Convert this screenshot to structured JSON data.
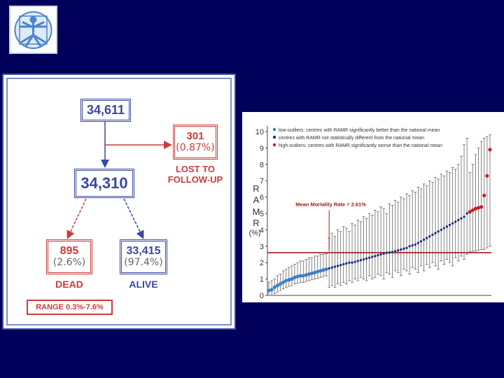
{
  "colors": {
    "background": "#00005a",
    "flow_blue": "#3a48a0",
    "flow_red": "#cc3b3b",
    "chart_low_outlier": "#3d7fc1",
    "chart_not_different": "#1f2f7a",
    "chart_high_outlier": "#c62020",
    "chart_mean_line": "#a01818"
  },
  "logo": {
    "icon": "vitruvian-man-icon"
  },
  "flowchart": {
    "total": "34,611",
    "lost": "301",
    "lost_pct": "(0.87%)",
    "lost_label": [
      "LOST TO",
      "FOLLOW-UP"
    ],
    "followed": "34,310",
    "dead": "895",
    "dead_pct": "(2.6%)",
    "dead_label": "DEAD",
    "alive": "33,415",
    "alive_pct": "(97.4%)",
    "alive_label": "ALIVE",
    "range": "RANGE 0.3%-7.6%"
  },
  "chart_data": {
    "type": "scatter",
    "ylabel_letters": [
      "R",
      "A",
      "M",
      "R"
    ],
    "ylabel_unit": "(%)",
    "yticks": [
      0,
      1,
      2,
      3,
      4,
      5,
      6,
      7,
      8,
      9,
      10
    ],
    "ylim": [
      0,
      10
    ],
    "grid": false,
    "legend_position": "top-left",
    "legend": [
      "low-outliers: centres with RAMR significantly better than the national mean",
      "centres with RAMR not statistically different from the national mean",
      "high-outliers: centres with RAMR significantly worse than the national mean"
    ],
    "mean_label": "Mean Mortality Rate = 2.61%",
    "mean_value": 2.61,
    "x": [
      1,
      2,
      3,
      4,
      5,
      6,
      7,
      8,
      9,
      10,
      11,
      12,
      13,
      14,
      15,
      16,
      17,
      18,
      19,
      20,
      21,
      22,
      23,
      24,
      25,
      26,
      27,
      28,
      29,
      30,
      31,
      32,
      33,
      34,
      35,
      36,
      37,
      38,
      39,
      40,
      41,
      42,
      43,
      44,
      45,
      46,
      47,
      48,
      49,
      50,
      51,
      52,
      53,
      54,
      55,
      56,
      57,
      58,
      59,
      60,
      61,
      62,
      63,
      64,
      65,
      66,
      67,
      68,
      69,
      70,
      71,
      72,
      73,
      74,
      75,
      76,
      77,
      78
    ],
    "series": [
      {
        "key": "low",
        "x": [
          1,
          2,
          3,
          4,
          5,
          6,
          7,
          8,
          9,
          10,
          11,
          12,
          13,
          14,
          15,
          16,
          17,
          18,
          19,
          20,
          21
        ],
        "values": [
          0.3,
          0.35,
          0.5,
          0.6,
          0.7,
          0.8,
          0.9,
          0.95,
          1.0,
          1.1,
          1.15,
          1.2,
          1.2,
          1.25,
          1.3,
          1.35,
          1.4,
          1.45,
          1.5,
          1.55,
          1.6
        ],
        "lower": [
          0,
          0,
          0.1,
          0.2,
          0.3,
          0.4,
          0.5,
          0.55,
          0.6,
          0.7,
          0.75,
          0.8,
          0.8,
          0.85,
          0.9,
          0.95,
          1.0,
          1.05,
          1.1,
          1.15,
          1.2
        ],
        "upper": [
          0.8,
          0.9,
          1.0,
          1.2,
          1.3,
          1.5,
          1.6,
          1.7,
          1.8,
          1.9,
          2.0,
          2.1,
          2.1,
          2.2,
          2.3,
          2.3,
          2.4,
          2.4,
          2.5,
          2.5,
          2.55
        ]
      },
      {
        "key": "mid",
        "x": [
          22,
          23,
          24,
          25,
          26,
          27,
          28,
          29,
          30,
          31,
          32,
          33,
          34,
          35,
          36,
          37,
          38,
          39,
          40,
          41,
          42,
          43,
          44,
          45,
          46,
          47,
          48,
          49,
          50,
          51,
          52,
          53,
          54,
          55,
          56,
          57,
          58,
          59,
          60,
          61,
          62,
          63,
          64,
          65,
          66,
          67,
          68,
          69,
          70
        ],
        "values": [
          1.65,
          1.7,
          1.75,
          1.8,
          1.85,
          1.9,
          1.95,
          2.0,
          2.0,
          2.05,
          2.1,
          2.15,
          2.2,
          2.25,
          2.3,
          2.35,
          2.4,
          2.45,
          2.5,
          2.55,
          2.6,
          2.62,
          2.65,
          2.7,
          2.75,
          2.8,
          2.85,
          2.9,
          3.0,
          3.05,
          3.1,
          3.2,
          3.3,
          3.4,
          3.5,
          3.6,
          3.7,
          3.8,
          3.9,
          4.0,
          4.1,
          4.2,
          4.3,
          4.4,
          4.5,
          4.6,
          4.7,
          4.8,
          5.0
        ],
        "lower": [
          0.5,
          0.6,
          0.5,
          0.7,
          0.6,
          0.8,
          0.7,
          0.9,
          0.8,
          1.0,
          0.9,
          1.1,
          1.0,
          0.9,
          1.2,
          1.0,
          1.1,
          1.3,
          1.2,
          1.0,
          1.4,
          1.3,
          1.1,
          1.5,
          1.4,
          1.2,
          1.6,
          1.5,
          1.3,
          1.7,
          1.6,
          1.4,
          1.8,
          1.5,
          1.9,
          1.7,
          2.0,
          1.8,
          1.6,
          2.1,
          1.9,
          2.2,
          2.0,
          1.8,
          2.3,
          2.1,
          2.4,
          2.2,
          2.5
        ],
        "upper": [
          3.5,
          3.8,
          3.6,
          4.0,
          3.9,
          4.2,
          4.1,
          3.9,
          4.4,
          4.3,
          4.6,
          4.5,
          4.8,
          4.7,
          5.0,
          4.9,
          5.2,
          5.1,
          5.4,
          5.3,
          5.0,
          5.6,
          5.5,
          5.8,
          5.7,
          6.0,
          5.9,
          6.2,
          6.1,
          6.4,
          6.3,
          6.6,
          6.5,
          6.8,
          6.7,
          7.0,
          6.9,
          7.2,
          7.1,
          7.4,
          7.3,
          7.6,
          7.5,
          7.8,
          7.7,
          8.0,
          8.5,
          9.2,
          9.6
        ]
      },
      {
        "key": "high",
        "x": [
          71,
          72,
          73,
          74,
          75,
          76,
          77,
          78
        ],
        "values": [
          5.1,
          5.2,
          5.3,
          5.35,
          5.4,
          6.1,
          7.3,
          8.9
        ],
        "lower": [
          2.65,
          2.7,
          2.7,
          2.75,
          2.8,
          2.8,
          2.9,
          3.0
        ],
        "upper": [
          7.5,
          8.0,
          8.6,
          9.0,
          9.4,
          9.6,
          9.7,
          9.8
        ]
      }
    ]
  }
}
